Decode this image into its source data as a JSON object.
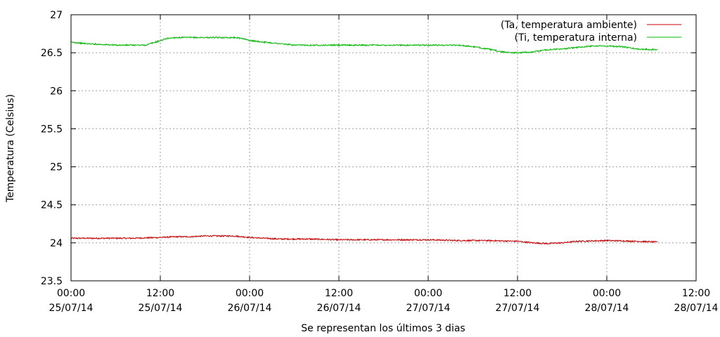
{
  "chart_data": {
    "type": "line",
    "title": "",
    "xlabel": "Se representan los últimos 3 dias",
    "ylabel": "Temperatura (Celsius)",
    "ylim": [
      23.5,
      27
    ],
    "xlim_hours": [
      0,
      84
    ],
    "grid": true,
    "legend_position": "top-right",
    "y_ticks": [
      "23.5",
      "24",
      "24.5",
      "25",
      "25.5",
      "26",
      "26.5",
      "27"
    ],
    "x_ticks": [
      {
        "time": "00:00",
        "date": "25/07/14"
      },
      {
        "time": "12:00",
        "date": "25/07/14"
      },
      {
        "time": "00:00",
        "date": "26/07/14"
      },
      {
        "time": "12:00",
        "date": "26/07/14"
      },
      {
        "time": "00:00",
        "date": "27/07/14"
      },
      {
        "time": "12:00",
        "date": "27/07/14"
      },
      {
        "time": "00:00",
        "date": "28/07/14"
      },
      {
        "time": "12:00",
        "date": "28/07/14"
      }
    ],
    "series": [
      {
        "name": "(Ta, temperatura ambiente)",
        "color": "#cc0000",
        "x": [
          0,
          4,
          8,
          12,
          14,
          16,
          18,
          20,
          22,
          24,
          28,
          32,
          36,
          40,
          44,
          48,
          52,
          56,
          60,
          62,
          64,
          66,
          68,
          72,
          76,
          78.8
        ],
        "y": [
          24.06,
          24.06,
          24.06,
          24.07,
          24.08,
          24.08,
          24.09,
          24.09,
          24.09,
          24.07,
          24.05,
          24.05,
          24.04,
          24.04,
          24.04,
          24.04,
          24.03,
          24.03,
          24.02,
          24.0,
          23.99,
          24.0,
          24.02,
          24.03,
          24.02,
          24.01
        ]
      },
      {
        "name": "(Ti, temperatura interna)",
        "color": "#00bb00",
        "x": [
          0,
          2,
          4,
          6,
          8,
          10,
          11,
          12,
          13,
          14,
          16,
          18,
          20,
          22,
          23,
          24,
          26,
          28,
          30,
          32,
          36,
          40,
          44,
          48,
          52,
          54,
          56,
          58,
          60,
          62,
          64,
          66,
          68,
          70,
          72,
          74,
          76,
          78.8
        ],
        "y": [
          26.64,
          26.62,
          26.61,
          26.6,
          26.6,
          26.6,
          26.63,
          26.66,
          26.69,
          26.7,
          26.7,
          26.7,
          26.7,
          26.7,
          26.69,
          26.66,
          26.64,
          26.62,
          26.6,
          26.6,
          26.6,
          26.6,
          26.6,
          26.6,
          26.6,
          26.58,
          26.55,
          26.51,
          26.5,
          26.51,
          26.54,
          26.55,
          26.57,
          26.59,
          26.59,
          26.58,
          26.55,
          26.54
        ]
      }
    ]
  }
}
